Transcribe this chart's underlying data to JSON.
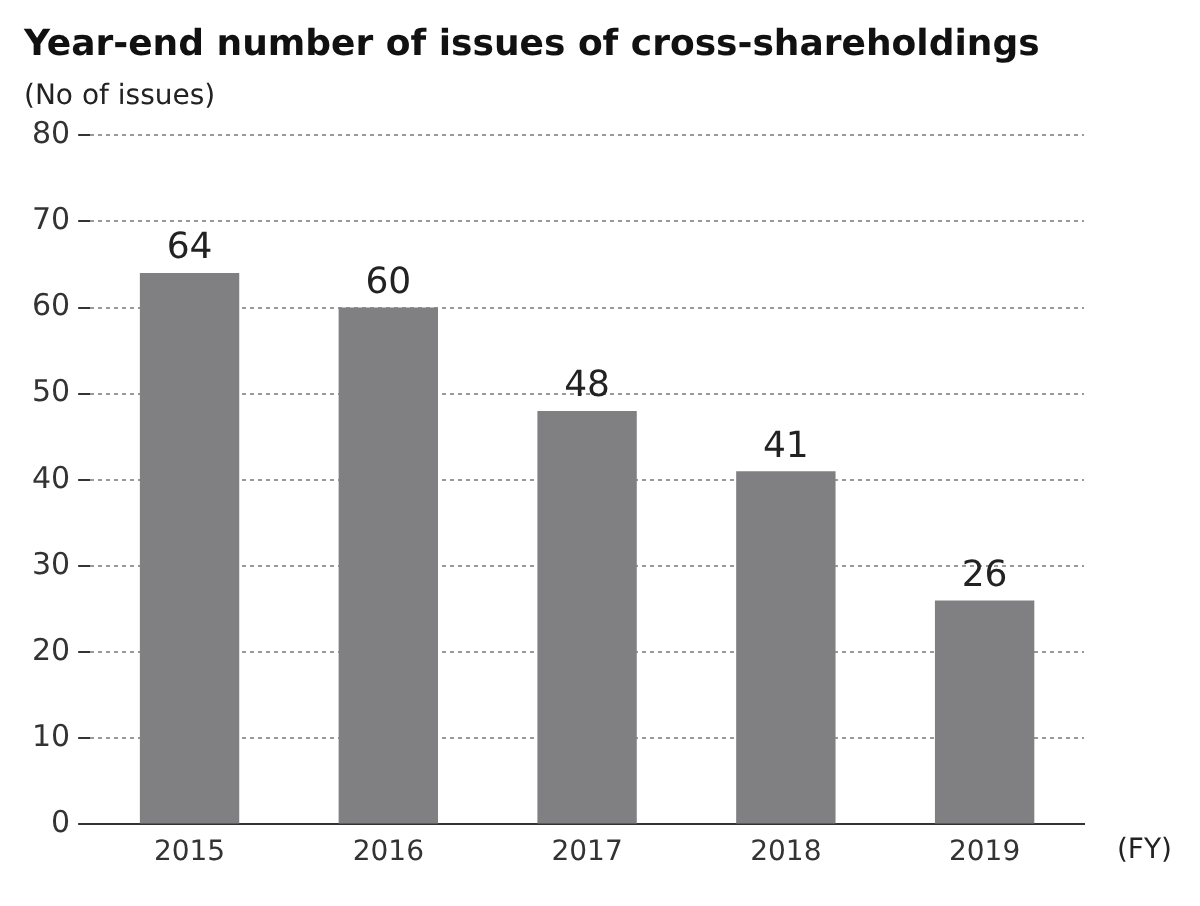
{
  "chart_data": {
    "type": "bar",
    "title": "Year-end number of issues of cross-shareholdings",
    "ylabel": "(No of issues)",
    "xlabel": "(FY)",
    "categories": [
      "2015",
      "2016",
      "2017",
      "2018",
      "2019"
    ],
    "values": [
      64,
      60,
      48,
      41,
      26
    ],
    "color": "#808083",
    "ylim": [
      0,
      80
    ],
    "yticks": [
      0,
      10,
      20,
      30,
      40,
      50,
      60,
      70,
      80
    ],
    "grid": "y",
    "data_labels": true,
    "legend": false
  }
}
